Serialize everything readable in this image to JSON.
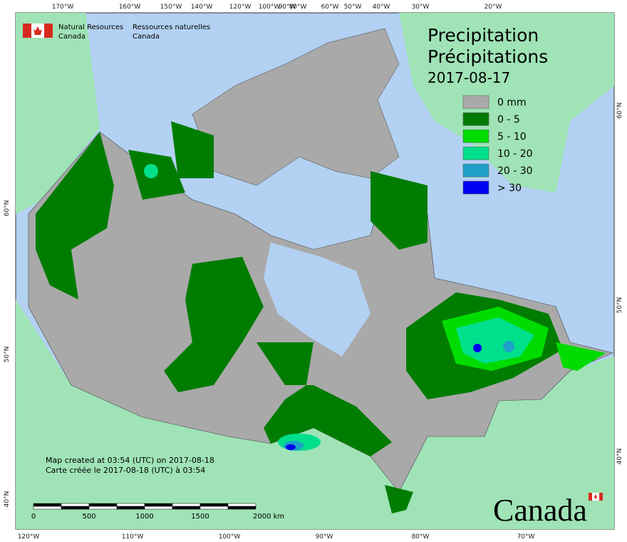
{
  "header": {
    "agency_en": [
      "Natural Resources",
      "Canada"
    ],
    "agency_fr": [
      "Ressources naturelles",
      "Canada"
    ]
  },
  "title": [
    "Precipitation",
    "Précipitations",
    "2017-08-17"
  ],
  "legend": [
    {
      "label": "0 mm",
      "color": "#a9a9a9"
    },
    {
      "label": "0 - 5",
      "color": "#007d00"
    },
    {
      "label": "5 - 10",
      "color": "#00dc00"
    },
    {
      "label": "10 - 20",
      "color": "#00e08c"
    },
    {
      "label": "20 - 30",
      "color": "#1ea0c8"
    },
    {
      "label": "> 30",
      "color": "#0000f0"
    }
  ],
  "graticule": {
    "top": [
      "170°W",
      "160°W",
      "150°W",
      "140°W",
      "120°W",
      "100°W",
      "90°W",
      "80°W",
      "60°W",
      "50°W",
      "40°W",
      "30°W",
      "20°W"
    ],
    "bottom": [
      "120°W",
      "110°W",
      "100°W",
      "90°W",
      "80°W",
      "70°W"
    ],
    "left": [
      "60°N",
      "50°N",
      "40°N"
    ],
    "right": [
      "60°N",
      "50°N",
      "40°N"
    ]
  },
  "notes": [
    "Map created at 03:54 (UTC) on 2017-08-18",
    "Carte créée le 2017-08-18 (UTC) à 03:54"
  ],
  "scale_bar": [
    "0",
    "500",
    "1000",
    "1500",
    "2000 km"
  ],
  "wordmark": "Canada"
}
